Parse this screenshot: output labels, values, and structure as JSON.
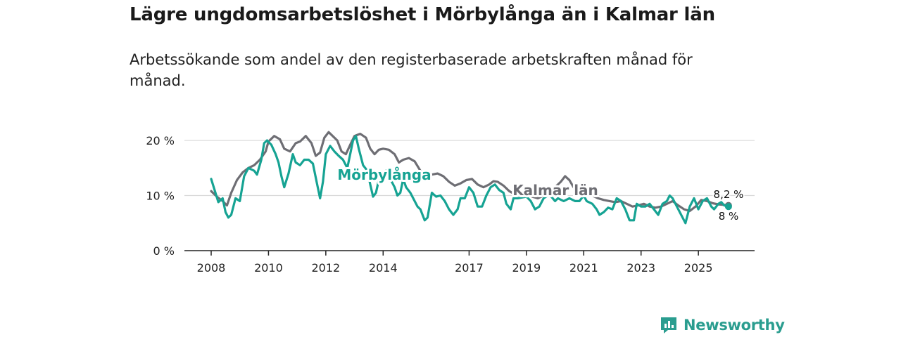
{
  "title": "Lägre ungdomsarbetslöshet i Mörbylånga än i Kalmar län",
  "subtitle": "Arbetssökande som andel av den registerbaserade arbetskraften månad för månad.",
  "brand": {
    "name": "Newsworthy",
    "icon": "newsworthy-logo-icon"
  },
  "colors": {
    "morbylanga": "#16a393",
    "kalmar": "#6e6e74",
    "grid": "#d9d9d9",
    "axis": "#222222"
  },
  "chart_data": {
    "type": "line",
    "xlabel": "",
    "ylabel": "",
    "ylim": [
      0,
      20
    ],
    "xlim": [
      2008,
      2026.2
    ],
    "y_ticks": [
      {
        "value": 0,
        "label": "0 %"
      },
      {
        "value": 10,
        "label": "10 %"
      },
      {
        "value": 20,
        "label": "20 %"
      }
    ],
    "x_ticks": [
      {
        "value": 2008,
        "label": "2008"
      },
      {
        "value": 2010,
        "label": "2010"
      },
      {
        "value": 2012,
        "label": "2012"
      },
      {
        "value": 2014,
        "label": "2014"
      },
      {
        "value": 2017,
        "label": "2017"
      },
      {
        "value": 2019,
        "label": "2019"
      },
      {
        "value": 2021,
        "label": "2021"
      },
      {
        "value": 2023,
        "label": "2023"
      },
      {
        "value": 2025,
        "label": "2025"
      }
    ],
    "series": [
      {
        "name": "Kalmar län",
        "label": "Kalmar län",
        "end_label": "8,2 %",
        "points": [
          [
            2008.0,
            10.8
          ],
          [
            2008.2,
            9.8
          ],
          [
            2008.4,
            9.0
          ],
          [
            2008.55,
            8.2
          ],
          [
            2008.7,
            10.5
          ],
          [
            2008.9,
            12.8
          ],
          [
            2009.1,
            14.2
          ],
          [
            2009.3,
            15.0
          ],
          [
            2009.5,
            15.5
          ],
          [
            2009.7,
            16.5
          ],
          [
            2009.9,
            18.0
          ],
          [
            2010.0,
            19.8
          ],
          [
            2010.2,
            20.8
          ],
          [
            2010.4,
            20.2
          ],
          [
            2010.55,
            18.5
          ],
          [
            2010.75,
            18.0
          ],
          [
            2010.95,
            19.5
          ],
          [
            2011.1,
            19.8
          ],
          [
            2011.3,
            20.8
          ],
          [
            2011.5,
            19.5
          ],
          [
            2011.65,
            17.2
          ],
          [
            2011.8,
            17.8
          ],
          [
            2011.95,
            20.5
          ],
          [
            2012.1,
            21.5
          ],
          [
            2012.2,
            21.0
          ],
          [
            2012.4,
            20.0
          ],
          [
            2012.55,
            18.0
          ],
          [
            2012.7,
            17.5
          ],
          [
            2012.85,
            19.2
          ],
          [
            2013.0,
            20.8
          ],
          [
            2013.2,
            21.2
          ],
          [
            2013.4,
            20.5
          ],
          [
            2013.55,
            18.5
          ],
          [
            2013.7,
            17.5
          ],
          [
            2013.85,
            18.3
          ],
          [
            2014.0,
            18.5
          ],
          [
            2014.2,
            18.3
          ],
          [
            2014.4,
            17.5
          ],
          [
            2014.55,
            16.0
          ],
          [
            2014.7,
            16.5
          ],
          [
            2014.9,
            16.8
          ],
          [
            2015.1,
            16.2
          ],
          [
            2015.3,
            14.5
          ],
          [
            2015.5,
            14.0
          ],
          [
            2015.7,
            13.8
          ],
          [
            2015.9,
            14.0
          ],
          [
            2016.1,
            13.5
          ],
          [
            2016.3,
            12.5
          ],
          [
            2016.5,
            11.8
          ],
          [
            2016.7,
            12.2
          ],
          [
            2016.9,
            12.8
          ],
          [
            2017.1,
            13.0
          ],
          [
            2017.3,
            12.0
          ],
          [
            2017.5,
            11.5
          ],
          [
            2017.7,
            12.0
          ],
          [
            2017.85,
            12.6
          ],
          [
            2018.0,
            12.5
          ],
          [
            2018.2,
            11.8
          ],
          [
            2018.4,
            10.8
          ],
          [
            2018.6,
            10.2
          ],
          [
            2018.8,
            10.0
          ],
          [
            2019.0,
            10.5
          ],
          [
            2019.2,
            9.8
          ],
          [
            2019.4,
            9.5
          ],
          [
            2019.6,
            10.0
          ],
          [
            2019.8,
            11.0
          ],
          [
            2020.0,
            11.5
          ],
          [
            2020.2,
            12.5
          ],
          [
            2020.35,
            13.5
          ],
          [
            2020.5,
            12.8
          ],
          [
            2020.7,
            11.0
          ],
          [
            2020.9,
            10.5
          ],
          [
            2021.1,
            10.2
          ],
          [
            2021.3,
            10.0
          ],
          [
            2021.5,
            9.5
          ],
          [
            2021.7,
            9.2
          ],
          [
            2021.9,
            9.0
          ],
          [
            2022.1,
            8.8
          ],
          [
            2022.3,
            9.0
          ],
          [
            2022.5,
            8.5
          ],
          [
            2022.7,
            8.0
          ],
          [
            2022.9,
            8.2
          ],
          [
            2023.1,
            8.5
          ],
          [
            2023.3,
            8.0
          ],
          [
            2023.5,
            7.8
          ],
          [
            2023.7,
            8.0
          ],
          [
            2023.9,
            8.5
          ],
          [
            2024.1,
            9.0
          ],
          [
            2024.3,
            8.2
          ],
          [
            2024.5,
            7.5
          ],
          [
            2024.7,
            7.2
          ],
          [
            2024.9,
            8.0
          ],
          [
            2025.1,
            9.2
          ],
          [
            2025.3,
            9.0
          ],
          [
            2025.5,
            8.6
          ],
          [
            2025.7,
            8.4
          ],
          [
            2025.9,
            8.3
          ],
          [
            2026.05,
            8.2
          ]
        ]
      },
      {
        "name": "Mörbylånga",
        "label": "Mörbylånga",
        "end_label": "8 %",
        "points": [
          [
            2008.0,
            13.0
          ],
          [
            2008.15,
            10.5
          ],
          [
            2008.25,
            8.8
          ],
          [
            2008.4,
            9.5
          ],
          [
            2008.5,
            7.0
          ],
          [
            2008.6,
            6.0
          ],
          [
            2008.7,
            6.5
          ],
          [
            2008.85,
            9.5
          ],
          [
            2009.0,
            9.0
          ],
          [
            2009.15,
            13.5
          ],
          [
            2009.3,
            15.0
          ],
          [
            2009.5,
            14.5
          ],
          [
            2009.6,
            13.8
          ],
          [
            2009.75,
            16.5
          ],
          [
            2009.85,
            19.5
          ],
          [
            2009.95,
            20.0
          ],
          [
            2010.1,
            19.2
          ],
          [
            2010.25,
            17.5
          ],
          [
            2010.35,
            16.0
          ],
          [
            2010.45,
            13.5
          ],
          [
            2010.55,
            11.5
          ],
          [
            2010.7,
            14.0
          ],
          [
            2010.85,
            17.5
          ],
          [
            2010.95,
            16.0
          ],
          [
            2011.1,
            15.5
          ],
          [
            2011.25,
            16.5
          ],
          [
            2011.4,
            16.5
          ],
          [
            2011.55,
            15.8
          ],
          [
            2011.7,
            12.0
          ],
          [
            2011.8,
            9.5
          ],
          [
            2011.9,
            12.5
          ],
          [
            2012.0,
            17.5
          ],
          [
            2012.15,
            19.0
          ],
          [
            2012.3,
            18.0
          ],
          [
            2012.45,
            17.2
          ],
          [
            2012.6,
            16.5
          ],
          [
            2012.75,
            15.0
          ],
          [
            2012.85,
            17.5
          ],
          [
            2012.95,
            20.0
          ],
          [
            2013.05,
            20.8
          ],
          [
            2013.15,
            18.5
          ],
          [
            2013.3,
            15.5
          ],
          [
            2013.45,
            14.5
          ],
          [
            2013.55,
            12.0
          ],
          [
            2013.65,
            9.8
          ],
          [
            2013.75,
            10.5
          ],
          [
            2013.9,
            14.0
          ],
          [
            2014.1,
            14.5
          ],
          [
            2014.25,
            13.0
          ],
          [
            2014.4,
            11.5
          ],
          [
            2014.5,
            10.0
          ],
          [
            2014.6,
            10.5
          ],
          [
            2014.7,
            13.0
          ],
          [
            2014.8,
            11.5
          ],
          [
            2014.95,
            10.5
          ],
          [
            2015.05,
            9.5
          ],
          [
            2015.2,
            8.0
          ],
          [
            2015.3,
            7.5
          ],
          [
            2015.45,
            5.5
          ],
          [
            2015.55,
            6.0
          ],
          [
            2015.7,
            10.5
          ],
          [
            2015.85,
            9.8
          ],
          [
            2016.0,
            10.0
          ],
          [
            2016.15,
            9.0
          ],
          [
            2016.3,
            7.5
          ],
          [
            2016.45,
            6.5
          ],
          [
            2016.6,
            7.5
          ],
          [
            2016.7,
            9.5
          ],
          [
            2016.85,
            9.5
          ],
          [
            2017.0,
            11.5
          ],
          [
            2017.15,
            10.5
          ],
          [
            2017.3,
            8.0
          ],
          [
            2017.45,
            8.0
          ],
          [
            2017.6,
            10.0
          ],
          [
            2017.75,
            11.5
          ],
          [
            2017.9,
            12.0
          ],
          [
            2018.05,
            11.0
          ],
          [
            2018.2,
            10.5
          ],
          [
            2018.3,
            8.5
          ],
          [
            2018.45,
            7.5
          ],
          [
            2018.55,
            9.5
          ],
          [
            2018.7,
            9.5
          ],
          [
            2019.0,
            9.8
          ],
          [
            2019.15,
            9.0
          ],
          [
            2019.3,
            7.5
          ],
          [
            2019.45,
            8.0
          ],
          [
            2019.6,
            9.5
          ],
          [
            2019.8,
            10.2
          ],
          [
            2020.0,
            9.0
          ],
          [
            2020.1,
            9.5
          ],
          [
            2020.3,
            9.0
          ],
          [
            2020.5,
            9.5
          ],
          [
            2020.7,
            9.0
          ],
          [
            2020.85,
            9.0
          ],
          [
            2021.0,
            10.0
          ],
          [
            2021.1,
            9.0
          ],
          [
            2021.3,
            8.5
          ],
          [
            2021.45,
            7.5
          ],
          [
            2021.55,
            6.5
          ],
          [
            2021.7,
            7.0
          ],
          [
            2021.85,
            7.8
          ],
          [
            2022.0,
            7.5
          ],
          [
            2022.15,
            9.5
          ],
          [
            2022.3,
            9.0
          ],
          [
            2022.45,
            7.5
          ],
          [
            2022.6,
            5.5
          ],
          [
            2022.75,
            5.5
          ],
          [
            2022.85,
            8.5
          ],
          [
            2023.0,
            8.0
          ],
          [
            2023.15,
            8.0
          ],
          [
            2023.3,
            8.5
          ],
          [
            2023.45,
            7.5
          ],
          [
            2023.6,
            6.5
          ],
          [
            2023.75,
            8.5
          ],
          [
            2023.9,
            9.0
          ],
          [
            2024.0,
            10.0
          ],
          [
            2024.1,
            9.5
          ],
          [
            2024.25,
            8.0
          ],
          [
            2024.4,
            6.5
          ],
          [
            2024.55,
            5.0
          ],
          [
            2024.7,
            8.0
          ],
          [
            2024.85,
            9.5
          ],
          [
            2025.0,
            7.5
          ],
          [
            2025.15,
            9.0
          ],
          [
            2025.3,
            9.5
          ],
          [
            2025.45,
            8.0
          ],
          [
            2025.55,
            7.5
          ],
          [
            2025.7,
            8.5
          ],
          [
            2025.8,
            8.8
          ],
          [
            2025.9,
            8.2
          ],
          [
            2026.05,
            8.0
          ]
        ]
      }
    ]
  }
}
